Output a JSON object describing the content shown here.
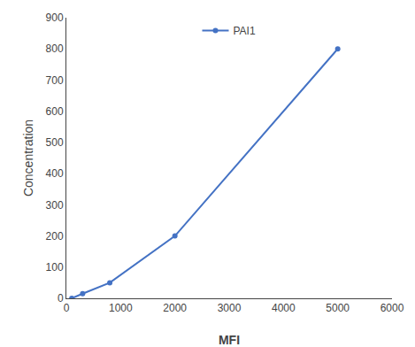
{
  "chart_data": {
    "type": "line",
    "x": [
      100,
      300,
      800,
      2000,
      5000
    ],
    "series": [
      {
        "name": "PAI1",
        "color": "#4472C4",
        "marker": "circle",
        "values": [
          0,
          15,
          50,
          200,
          800
        ]
      }
    ],
    "xlabel": "MFI",
    "ylabel": "Concentration",
    "xlim": [
      0,
      6000
    ],
    "ylim": [
      0,
      900
    ],
    "xticks": [
      0,
      1000,
      2000,
      3000,
      4000,
      5000,
      6000
    ],
    "yticks": [
      0,
      100,
      200,
      300,
      400,
      500,
      600,
      700,
      800,
      900
    ],
    "grid": false,
    "legend": "top"
  }
}
